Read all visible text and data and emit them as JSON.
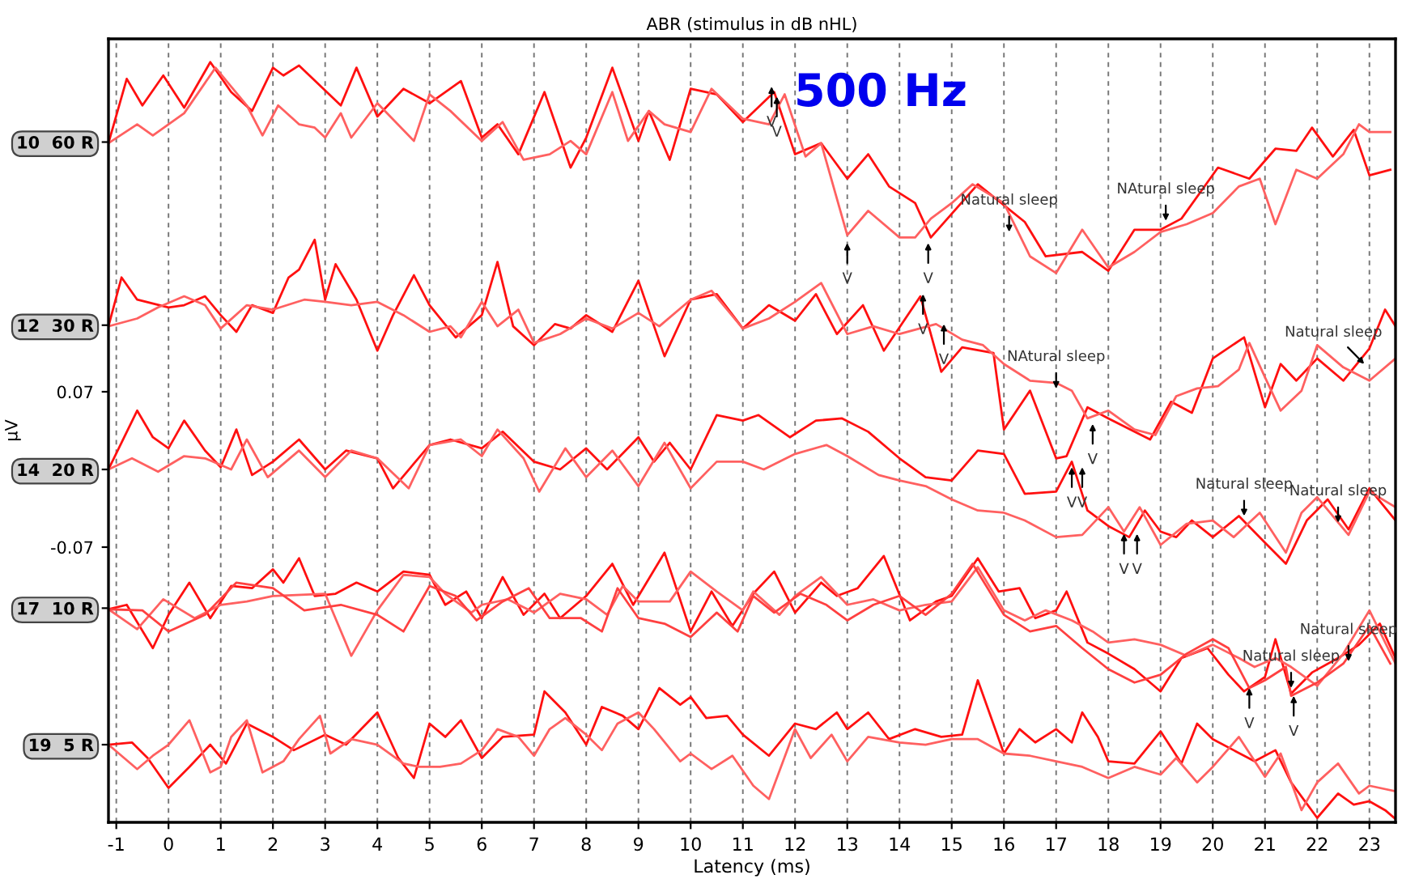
{
  "chart_data": {
    "type": "line",
    "title": "ABR (stimulus in dB nHL)",
    "xlabel": "Latency (ms)",
    "ylabel": "μV",
    "xlim": [
      -1.15,
      23.5
    ],
    "xticks": [
      -1,
      0,
      1,
      2,
      3,
      4,
      5,
      6,
      7,
      8,
      9,
      10,
      11,
      12,
      13,
      14,
      15,
      16,
      17,
      18,
      19,
      20,
      21,
      22,
      23
    ],
    "ylim": [
      -0.318,
      0.388
    ],
    "yticks": [
      {
        "value": 0.295,
        "label": "10  60 R"
      },
      {
        "value": 0.13,
        "label": "12  30 R"
      },
      0.07,
      {
        "value": 0,
        "label": "14  20 R"
      },
      -0.07,
      {
        "value": -0.125,
        "label": "17  10 R"
      },
      {
        "value": -0.248,
        "label": "19  5 R"
      }
    ],
    "grid": "x",
    "line_style": "solid",
    "marker": "none",
    "series": [
      {
        "color": "#ff1010",
        "x": [
          -1.15,
          -0.8,
          -0.5,
          -0.1,
          0.3,
          0.8,
          1.2,
          1.6,
          2.0,
          2.2,
          2.5,
          3.3,
          3.6,
          4.0,
          4.5,
          5.0,
          5.6,
          6.0,
          6.3,
          6.7,
          7.2,
          7.7,
          8.0,
          8.5,
          9.0,
          9.2,
          9.6,
          10.0,
          10.5,
          11.0,
          11.6,
          12.0,
          12.5,
          13.0,
          13.4,
          13.8,
          14.3,
          14.6,
          15.5,
          16.4,
          16.8,
          17.5,
          18.0,
          18.5,
          19.0,
          19.4,
          20.1,
          20.7,
          21.2,
          21.6,
          21.9,
          22.3,
          22.7,
          23.0,
          23.4
        ],
        "values": [
          0.294,
          0.352,
          0.328,
          0.355,
          0.326,
          0.367,
          0.34,
          0.323,
          0.362,
          0.355,
          0.364,
          0.328,
          0.362,
          0.318,
          0.343,
          0.33,
          0.35,
          0.299,
          0.311,
          0.284,
          0.34,
          0.272,
          0.299,
          0.362,
          0.296,
          0.323,
          0.279,
          0.343,
          0.338,
          0.313,
          0.34,
          0.284,
          0.294,
          0.262,
          0.284,
          0.255,
          0.24,
          0.209,
          0.257,
          0.223,
          0.192,
          0.196,
          0.179,
          0.216,
          0.216,
          0.226,
          0.272,
          0.262,
          0.289,
          0.287,
          0.308,
          0.282,
          0.306,
          0.265,
          0.27
        ]
      },
      {
        "color": "#ff6060",
        "x": [
          -1.15,
          -0.6,
          -0.3,
          0.3,
          0.9,
          1.5,
          1.8,
          2.1,
          2.5,
          2.8,
          3.0,
          3.3,
          3.5,
          4.0,
          4.7,
          5.0,
          5.4,
          6.0,
          6.4,
          6.8,
          7.3,
          7.7,
          8.0,
          8.5,
          8.8,
          9.2,
          9.5,
          10.0,
          10.4,
          11.0,
          11.5,
          11.8,
          12.2,
          12.5,
          13.0,
          13.4,
          14.0,
          14.3,
          14.6,
          15.0,
          15.4,
          16.0,
          16.5,
          17.0,
          17.5,
          18.0,
          18.5,
          19.0,
          19.5,
          20.0,
          20.5,
          20.9,
          21.2,
          21.6,
          22.0,
          22.5,
          22.8,
          23.0,
          23.4
        ],
        "values": [
          0.294,
          0.311,
          0.301,
          0.321,
          0.362,
          0.328,
          0.301,
          0.328,
          0.311,
          0.308,
          0.299,
          0.321,
          0.299,
          0.33,
          0.296,
          0.338,
          0.323,
          0.296,
          0.313,
          0.279,
          0.284,
          0.296,
          0.284,
          0.34,
          0.296,
          0.323,
          0.311,
          0.304,
          0.343,
          0.316,
          0.311,
          0.338,
          0.282,
          0.294,
          0.211,
          0.233,
          0.209,
          0.209,
          0.226,
          0.24,
          0.257,
          0.24,
          0.192,
          0.177,
          0.216,
          0.182,
          0.196,
          0.214,
          0.221,
          0.231,
          0.255,
          0.262,
          0.221,
          0.27,
          0.262,
          0.284,
          0.311,
          0.304,
          0.304
        ]
      },
      {
        "color": "#ff1010",
        "x": [
          -1.15,
          -0.9,
          -0.6,
          0.0,
          0.3,
          0.7,
          1.0,
          1.3,
          1.6,
          2.0,
          2.3,
          2.5,
          2.8,
          3.0,
          3.2,
          3.6,
          4.0,
          4.3,
          4.7,
          5.0,
          5.5,
          6.0,
          6.3,
          6.6,
          7.0,
          7.4,
          7.7,
          8.0,
          8.5,
          9.0,
          9.3,
          9.5,
          10.0,
          10.5,
          11.0,
          11.5,
          12.0,
          12.4,
          12.8,
          13.3,
          13.7,
          14.4,
          14.8,
          15.2,
          15.8,
          16.0,
          16.5,
          17.0,
          17.2,
          17.6,
          18.0,
          18.8,
          19.2,
          19.6,
          20.0,
          20.6,
          21.0,
          21.3,
          21.6,
          22.0,
          22.5,
          23.0,
          23.3,
          23.5
        ],
        "values": [
          0.129,
          0.173,
          0.153,
          0.146,
          0.148,
          0.156,
          0.139,
          0.124,
          0.148,
          0.141,
          0.173,
          0.18,
          0.207,
          0.153,
          0.185,
          0.153,
          0.107,
          0.139,
          0.175,
          0.148,
          0.119,
          0.139,
          0.187,
          0.129,
          0.112,
          0.131,
          0.127,
          0.139,
          0.124,
          0.17,
          0.129,
          0.102,
          0.153,
          0.158,
          0.127,
          0.148,
          0.134,
          0.158,
          0.122,
          0.148,
          0.107,
          0.156,
          0.088,
          0.11,
          0.105,
          0.036,
          0.071,
          0.01,
          0.012,
          0.056,
          0.046,
          0.027,
          0.061,
          0.051,
          0.1,
          0.119,
          0.056,
          0.095,
          0.08,
          0.1,
          0.08,
          0.109,
          0.144,
          0.129
        ]
      },
      {
        "color": "#ff6060",
        "x": [
          -1.15,
          -0.6,
          -0.2,
          0.3,
          0.7,
          1.0,
          1.5,
          2.0,
          2.6,
          3.0,
          3.5,
          4.0,
          4.5,
          5.0,
          5.4,
          5.6,
          6.0,
          6.3,
          6.7,
          7.0,
          7.5,
          8.0,
          8.5,
          9.0,
          9.4,
          10.0,
          10.4,
          11.0,
          11.5,
          12.0,
          12.5,
          13.0,
          13.5,
          14.0,
          14.7,
          15.2,
          15.6,
          16.0,
          16.5,
          17.0,
          17.3,
          17.6,
          18.0,
          18.5,
          18.9,
          19.3,
          19.7,
          20.1,
          20.5,
          20.7,
          21.0,
          21.3,
          21.7,
          22.0,
          22.5,
          23.0,
          23.5
        ],
        "values": [
          0.129,
          0.136,
          0.146,
          0.156,
          0.148,
          0.127,
          0.148,
          0.144,
          0.153,
          0.151,
          0.148,
          0.151,
          0.139,
          0.124,
          0.129,
          0.119,
          0.151,
          0.129,
          0.144,
          0.114,
          0.122,
          0.136,
          0.127,
          0.141,
          0.129,
          0.153,
          0.161,
          0.127,
          0.136,
          0.151,
          0.168,
          0.122,
          0.129,
          0.122,
          0.131,
          0.117,
          0.112,
          0.095,
          0.08,
          0.078,
          0.071,
          0.046,
          0.053,
          0.036,
          0.031,
          0.066,
          0.073,
          0.075,
          0.09,
          0.114,
          0.083,
          0.053,
          0.071,
          0.112,
          0.092,
          0.08,
          0.1
        ]
      },
      {
        "color": "#ff1010",
        "x": [
          -1.15,
          -0.6,
          -0.3,
          0.0,
          0.3,
          0.7,
          1.0,
          1.3,
          1.6,
          2.0,
          2.5,
          3.0,
          3.4,
          4.0,
          4.3,
          5.0,
          5.4,
          6.0,
          6.4,
          7.0,
          7.5,
          8.0,
          8.4,
          9.0,
          9.3,
          9.6,
          10.0,
          10.5,
          11.0,
          11.3,
          11.9,
          12.4,
          12.9,
          13.4,
          14.0,
          14.5,
          15.0,
          15.5,
          16.0,
          16.4,
          17.0,
          17.3,
          17.6,
          18.0,
          18.4,
          18.7,
          19.0,
          19.3,
          19.6,
          20.0,
          20.5,
          21.0,
          21.4,
          21.8,
          22.2,
          22.6,
          23.0,
          23.5
        ],
        "values": [
          0.0,
          0.053,
          0.029,
          0.019,
          0.044,
          0.017,
          0.002,
          0.036,
          -0.005,
          0.007,
          0.027,
          0.0,
          0.017,
          0.01,
          -0.017,
          0.022,
          0.027,
          0.019,
          0.034,
          0.007,
          0.0,
          0.019,
          0.0,
          0.029,
          0.007,
          0.024,
          0.0,
          0.049,
          0.044,
          0.049,
          0.029,
          0.044,
          0.046,
          0.034,
          0.01,
          -0.007,
          -0.01,
          0.017,
          0.014,
          -0.022,
          -0.02,
          0.007,
          -0.037,
          -0.051,
          -0.061,
          -0.037,
          -0.056,
          -0.061,
          -0.046,
          -0.061,
          -0.042,
          -0.066,
          -0.085,
          -0.046,
          -0.027,
          -0.054,
          -0.017,
          -0.046
        ]
      },
      {
        "color": "#ff6060",
        "x": [
          -1.15,
          -0.7,
          -0.2,
          0.3,
          0.7,
          1.2,
          1.5,
          1.9,
          2.5,
          3.0,
          3.5,
          4.0,
          4.6,
          5.0,
          5.6,
          6.0,
          6.3,
          6.8,
          7.1,
          7.6,
          8.0,
          8.5,
          9.0,
          9.5,
          10.0,
          10.5,
          11.0,
          11.4,
          12.0,
          12.6,
          13.0,
          13.6,
          14.0,
          14.5,
          15.0,
          15.5,
          16.0,
          16.4,
          17.0,
          17.5,
          18.0,
          18.3,
          18.6,
          19.0,
          19.5,
          20.0,
          20.4,
          20.9,
          21.4,
          21.7,
          22.0,
          22.6,
          23.0,
          23.5
        ],
        "values": [
          0.0,
          0.01,
          -0.002,
          0.012,
          0.01,
          0.0,
          0.027,
          -0.007,
          0.017,
          -0.007,
          0.017,
          0.01,
          -0.017,
          0.022,
          0.027,
          0.012,
          0.036,
          0.01,
          -0.02,
          0.019,
          -0.007,
          0.017,
          -0.015,
          0.024,
          -0.017,
          0.007,
          0.007,
          0.0,
          0.014,
          0.022,
          0.012,
          -0.005,
          -0.01,
          -0.015,
          -0.027,
          -0.037,
          -0.039,
          -0.046,
          -0.061,
          -0.059,
          -0.034,
          -0.056,
          -0.034,
          -0.068,
          -0.049,
          -0.046,
          -0.061,
          -0.039,
          -0.075,
          -0.039,
          -0.025,
          -0.059,
          -0.02,
          -0.034
        ]
      },
      {
        "color": "#ff1010",
        "x": [
          -1.15,
          -0.8,
          -0.3,
          0.0,
          0.4,
          0.8,
          1.2,
          1.6,
          2.0,
          2.2,
          2.5,
          2.8,
          3.2,
          3.6,
          4.0,
          4.5,
          5.0,
          5.3,
          5.7,
          6.0,
          6.4,
          6.8,
          7.2,
          7.5,
          8.0,
          8.5,
          8.9,
          9.5,
          10.0,
          10.4,
          10.8,
          11.2,
          11.6,
          12.0,
          12.5,
          12.8,
          13.2,
          13.7,
          14.2,
          14.7,
          15.0,
          15.5,
          15.9,
          16.3,
          16.6,
          17.0,
          17.2,
          17.6,
          18.0,
          18.5,
          19.0,
          19.4,
          19.9,
          20.3,
          20.6,
          21.0,
          21.2,
          21.5,
          21.9,
          22.4,
          22.8,
          23.2,
          23.5
        ],
        "values": [
          -0.126,
          -0.122,
          -0.161,
          -0.131,
          -0.102,
          -0.134,
          -0.105,
          -0.107,
          -0.09,
          -0.102,
          -0.08,
          -0.114,
          -0.112,
          -0.102,
          -0.11,
          -0.092,
          -0.095,
          -0.122,
          -0.11,
          -0.134,
          -0.097,
          -0.131,
          -0.112,
          -0.134,
          -0.114,
          -0.085,
          -0.122,
          -0.075,
          -0.146,
          -0.11,
          -0.141,
          -0.112,
          -0.092,
          -0.129,
          -0.102,
          -0.114,
          -0.107,
          -0.078,
          -0.136,
          -0.119,
          -0.114,
          -0.08,
          -0.11,
          -0.107,
          -0.134,
          -0.127,
          -0.11,
          -0.156,
          -0.166,
          -0.18,
          -0.2,
          -0.17,
          -0.161,
          -0.185,
          -0.2,
          -0.187,
          -0.153,
          -0.202,
          -0.183,
          -0.17,
          -0.158,
          -0.139,
          -0.17
        ]
      },
      {
        "color": "#ff6060",
        "x": [
          -1.15,
          -0.6,
          -0.1,
          0.5,
          1.0,
          1.5,
          2.0,
          3.0,
          3.5,
          4.0,
          4.5,
          5.0,
          5.3,
          5.8,
          6.0,
          6.5,
          7.0,
          7.5,
          8.0,
          8.4,
          8.7,
          9.0,
          9.6,
          10.0,
          10.5,
          11.0,
          11.2,
          11.7,
          12.0,
          12.5,
          13.0,
          13.5,
          14.0,
          14.5,
          15.0,
          15.5,
          16.0,
          16.4,
          16.8,
          17.3,
          17.7,
          18.0,
          18.5,
          19.0,
          19.5,
          20.0,
          20.5,
          20.8,
          21.2,
          21.5,
          22.0,
          22.5,
          23.0,
          23.5
        ],
        "values": [
          -0.126,
          -0.144,
          -0.117,
          -0.134,
          -0.122,
          -0.119,
          -0.114,
          -0.112,
          -0.168,
          -0.127,
          -0.095,
          -0.097,
          -0.112,
          -0.129,
          -0.122,
          -0.117,
          -0.129,
          -0.112,
          -0.117,
          -0.131,
          -0.105,
          -0.119,
          -0.119,
          -0.092,
          -0.11,
          -0.127,
          -0.11,
          -0.131,
          -0.114,
          -0.097,
          -0.122,
          -0.117,
          -0.127,
          -0.122,
          -0.119,
          -0.088,
          -0.127,
          -0.136,
          -0.127,
          -0.136,
          -0.146,
          -0.156,
          -0.153,
          -0.158,
          -0.168,
          -0.158,
          -0.17,
          -0.178,
          -0.17,
          -0.178,
          -0.195,
          -0.166,
          -0.127,
          -0.175
        ]
      },
      {
        "color": "#ff4040",
        "x": [
          -1.15,
          -0.5,
          0.0,
          0.7,
          1.3,
          2.0,
          2.6,
          3.3,
          4.0,
          4.5,
          5.0,
          5.5,
          5.9,
          6.4,
          6.9,
          7.3,
          7.9,
          8.3,
          8.6,
          9.0,
          9.5,
          10.0,
          10.5,
          10.9,
          11.2,
          11.6,
          12.1,
          12.6,
          13.0,
          13.5,
          14.0,
          14.5,
          15.0,
          15.4,
          16.0,
          16.5,
          17.0,
          17.5,
          18.0,
          18.5,
          19.0,
          19.5,
          20.0,
          20.3,
          20.7,
          21.0,
          21.4,
          21.5,
          22.0,
          22.5,
          23.0,
          23.4
        ],
        "values": [
          -0.126,
          -0.127,
          -0.146,
          -0.131,
          -0.102,
          -0.107,
          -0.127,
          -0.122,
          -0.131,
          -0.146,
          -0.105,
          -0.114,
          -0.136,
          -0.119,
          -0.107,
          -0.134,
          -0.134,
          -0.146,
          -0.107,
          -0.134,
          -0.139,
          -0.151,
          -0.129,
          -0.146,
          -0.114,
          -0.129,
          -0.112,
          -0.122,
          -0.136,
          -0.122,
          -0.114,
          -0.131,
          -0.112,
          -0.085,
          -0.131,
          -0.146,
          -0.141,
          -0.161,
          -0.18,
          -0.192,
          -0.185,
          -0.166,
          -0.153,
          -0.161,
          -0.197,
          -0.19,
          -0.178,
          -0.204,
          -0.192,
          -0.175,
          -0.141,
          -0.175
        ]
      },
      {
        "color": "#ff1010",
        "x": [
          -1.15,
          -0.7,
          -0.4,
          0.0,
          0.4,
          0.8,
          1.1,
          1.5,
          2.0,
          2.4,
          3.0,
          3.4,
          4.0,
          4.4,
          4.7,
          5.0,
          5.3,
          5.6,
          6.0,
          6.4,
          7.0,
          7.2,
          7.6,
          8.0,
          8.3,
          8.7,
          9.0,
          9.4,
          9.8,
          10.0,
          10.3,
          10.7,
          11.0,
          11.5,
          12.0,
          12.4,
          12.8,
          13.0,
          13.4,
          13.8,
          14.3,
          14.8,
          15.2,
          15.5,
          16.0,
          16.3,
          16.6,
          17.0,
          17.3,
          17.5,
          17.8,
          18.0,
          18.5,
          19.0,
          19.4,
          19.7,
          20.0,
          20.4,
          20.8,
          21.2,
          21.5,
          22.0,
          22.4,
          22.7,
          23.0,
          23.3,
          23.5
        ],
        "values": [
          -0.248,
          -0.246,
          -0.26,
          -0.287,
          -0.268,
          -0.248,
          -0.265,
          -0.229,
          -0.241,
          -0.253,
          -0.239,
          -0.248,
          -0.219,
          -0.26,
          -0.278,
          -0.229,
          -0.241,
          -0.226,
          -0.26,
          -0.241,
          -0.239,
          -0.2,
          -0.219,
          -0.248,
          -0.214,
          -0.222,
          -0.234,
          -0.197,
          -0.212,
          -0.205,
          -0.224,
          -0.222,
          -0.239,
          -0.258,
          -0.229,
          -0.234,
          -0.219,
          -0.234,
          -0.219,
          -0.243,
          -0.234,
          -0.241,
          -0.239,
          -0.19,
          -0.256,
          -0.234,
          -0.246,
          -0.234,
          -0.246,
          -0.219,
          -0.241,
          -0.263,
          -0.265,
          -0.236,
          -0.265,
          -0.229,
          -0.243,
          -0.253,
          -0.263,
          -0.253,
          -0.282,
          -0.314,
          -0.292,
          -0.302,
          -0.299,
          -0.307,
          -0.315
        ]
      },
      {
        "color": "#ff6060",
        "x": [
          -1.15,
          -0.6,
          -0.3,
          0.0,
          0.4,
          0.8,
          1.0,
          1.2,
          1.5,
          1.8,
          2.2,
          2.5,
          2.9,
          3.1,
          3.5,
          4.0,
          4.5,
          4.8,
          5.2,
          5.6,
          6.0,
          6.3,
          6.7,
          7.0,
          7.3,
          7.6,
          8.0,
          8.3,
          8.6,
          9.0,
          9.3,
          9.8,
          10.0,
          10.4,
          10.8,
          11.2,
          11.5,
          12.0,
          12.3,
          12.7,
          13.0,
          13.4,
          14.0,
          14.5,
          15.0,
          15.5,
          16.0,
          16.5,
          17.0,
          17.5,
          18.0,
          18.5,
          19.0,
          19.3,
          19.7,
          20.0,
          20.5,
          21.0,
          21.3,
          21.7,
          22.0,
          22.4,
          22.8,
          23.0,
          23.5
        ],
        "values": [
          -0.248,
          -0.27,
          -0.258,
          -0.248,
          -0.226,
          -0.273,
          -0.268,
          -0.241,
          -0.226,
          -0.273,
          -0.263,
          -0.243,
          -0.222,
          -0.256,
          -0.243,
          -0.248,
          -0.265,
          -0.268,
          -0.268,
          -0.265,
          -0.253,
          -0.234,
          -0.241,
          -0.258,
          -0.234,
          -0.224,
          -0.239,
          -0.253,
          -0.229,
          -0.219,
          -0.234,
          -0.263,
          -0.256,
          -0.27,
          -0.258,
          -0.285,
          -0.297,
          -0.234,
          -0.26,
          -0.239,
          -0.263,
          -0.241,
          -0.246,
          -0.248,
          -0.243,
          -0.243,
          -0.256,
          -0.258,
          -0.263,
          -0.268,
          -0.278,
          -0.268,
          -0.275,
          -0.26,
          -0.282,
          -0.268,
          -0.241,
          -0.277,
          -0.256,
          -0.307,
          -0.282,
          -0.265,
          -0.292,
          -0.285,
          -0.29
        ]
      }
    ],
    "annotations": [
      "500 Hz",
      {
        "text": "V",
        "x": 11.55,
        "y": 0.345
      },
      {
        "text": "V",
        "x": 11.65,
        "y": 0.336
      },
      {
        "text": "V",
        "x": 13.0,
        "y": 0.204
      },
      {
        "text": "V",
        "x": 14.55,
        "y": 0.204
      },
      {
        "text": "Natural sleep",
        "x": 16.1,
        "y": 0.214
      },
      {
        "text": "NAtural sleep",
        "x": 19.1,
        "y": 0.224
      },
      {
        "text": "V",
        "x": 14.45,
        "y": 0.158
      },
      {
        "text": "V",
        "x": 14.85,
        "y": 0.131
      },
      {
        "text": "NAtural sleep",
        "x": 17.0,
        "y": 0.073
      },
      {
        "text": "Natural sleep",
        "x": 22.9,
        "y": 0.095
      },
      {
        "text": "V",
        "x": 17.7,
        "y": 0.041
      },
      {
        "text": "V",
        "x": 17.3,
        "y": 0.002
      },
      {
        "text": "V",
        "x": 17.5,
        "y": 0.002
      },
      {
        "text": "V",
        "x": 18.3,
        "y": -0.058
      },
      {
        "text": "V",
        "x": 18.55,
        "y": -0.058
      },
      {
        "text": "Natural sleep",
        "x": 20.6,
        "y": -0.042
      },
      {
        "text": "Natural sleep",
        "x": 22.4,
        "y": -0.048
      },
      {
        "text": "Natural sleep",
        "x": 21.5,
        "y": -0.197
      },
      {
        "text": "Natural sleep",
        "x": 22.6,
        "y": -0.173
      },
      {
        "text": "V",
        "x": 20.7,
        "y": -0.197
      },
      {
        "text": "V",
        "x": 21.55,
        "y": -0.204
      }
    ]
  }
}
